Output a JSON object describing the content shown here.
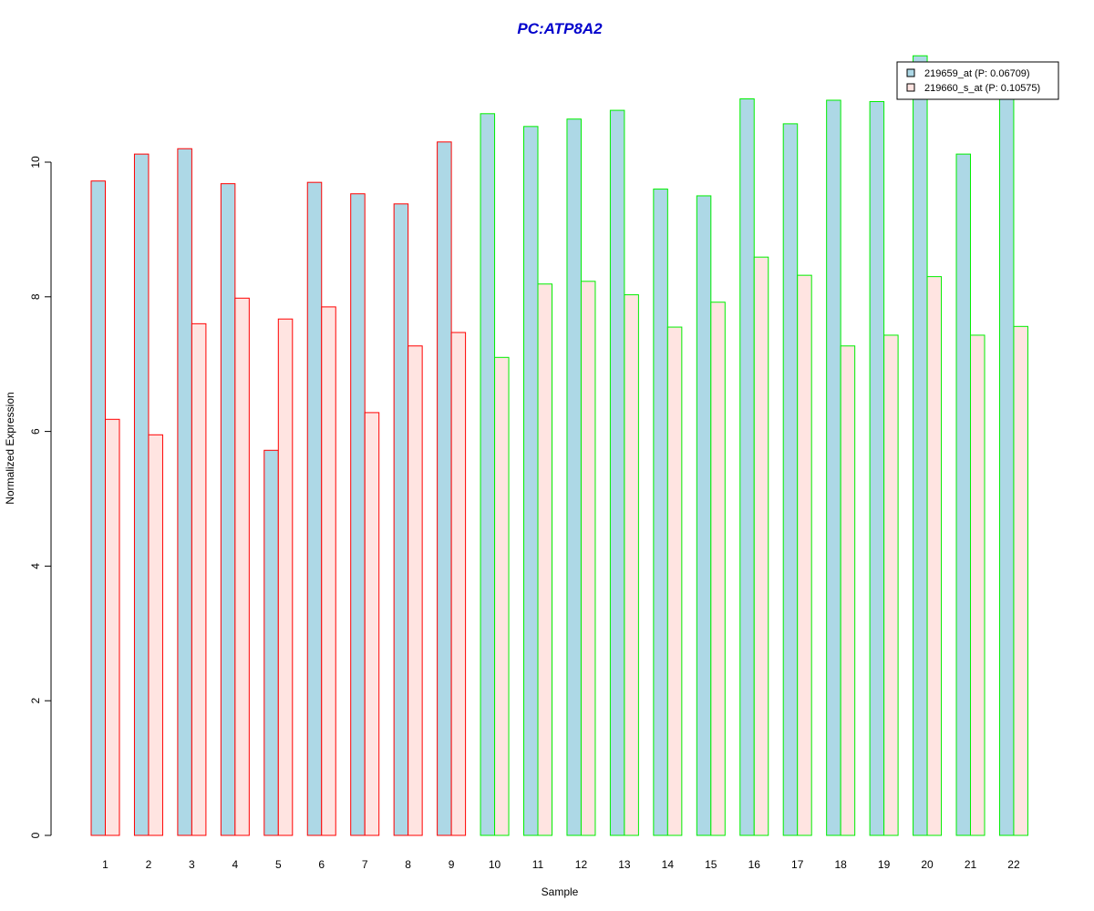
{
  "chart_data": {
    "type": "bar",
    "title": "PC:ATP8A2",
    "xlabel": "Sample",
    "ylabel": "Normalized Expression",
    "categories": [
      "1",
      "2",
      "3",
      "4",
      "5",
      "6",
      "7",
      "8",
      "9",
      "10",
      "11",
      "12",
      "13",
      "14",
      "15",
      "16",
      "17",
      "18",
      "19",
      "20",
      "21",
      "22"
    ],
    "ylim": [
      0,
      11.6
    ],
    "yticks": [
      0,
      2,
      4,
      6,
      8,
      10
    ],
    "grid": false,
    "legend_position": "top-right",
    "series": [
      {
        "name": "219659_at (P: 0.06709)",
        "fill": "#add8e6",
        "values": [
          9.72,
          10.12,
          10.2,
          9.68,
          5.72,
          9.7,
          9.53,
          9.38,
          10.3,
          10.72,
          10.53,
          10.64,
          10.77,
          9.6,
          9.5,
          10.94,
          10.57,
          10.92,
          10.9,
          11.58,
          10.12,
          10.94
        ]
      },
      {
        "name": "219660_s_at (P: 0.10575)",
        "fill": "#ffe4e1",
        "values": [
          6.18,
          5.95,
          7.6,
          7.98,
          7.67,
          7.85,
          6.28,
          7.27,
          7.47,
          7.1,
          8.19,
          8.23,
          8.03,
          7.55,
          7.92,
          8.59,
          8.32,
          7.27,
          7.43,
          8.3,
          7.43,
          7.56
        ]
      }
    ],
    "group_border_colors": [
      "#ff0000",
      "#ff0000",
      "#ff0000",
      "#ff0000",
      "#ff0000",
      "#ff0000",
      "#ff0000",
      "#ff0000",
      "#ff0000",
      "#00ee00",
      "#00ee00",
      "#00ee00",
      "#00ee00",
      "#00ee00",
      "#00ee00",
      "#00ee00",
      "#00ee00",
      "#00ee00",
      "#00ee00",
      "#00ee00",
      "#00ee00",
      "#00ee00"
    ]
  }
}
